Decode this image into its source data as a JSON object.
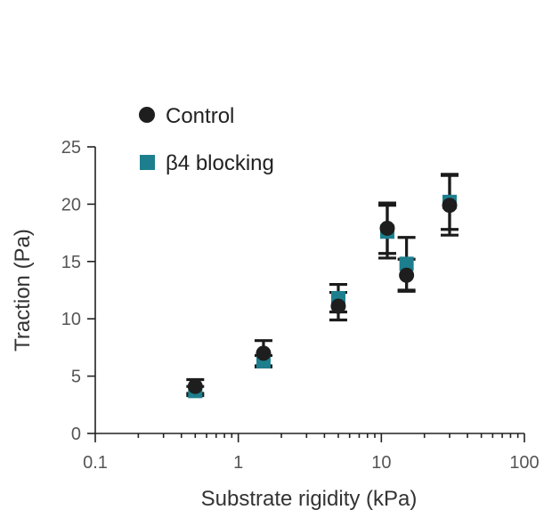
{
  "chart_data": {
    "type": "scatter",
    "xscale": "log",
    "xlabel": "Substrate rigidity (kPa)",
    "ylabel": "Traction (Pa)",
    "xlim": [
      0.1,
      100
    ],
    "ylim": [
      0,
      25
    ],
    "xticks": [
      0.1,
      1,
      10,
      100
    ],
    "xtick_labels": [
      "0.1",
      "1",
      "10",
      "100"
    ],
    "yticks": [
      0,
      5,
      10,
      15,
      20,
      25
    ],
    "ytick_labels": [
      "0",
      "5",
      "10",
      "15",
      "20",
      "25"
    ],
    "legend_position": "top-left",
    "series": [
      {
        "name": "Control",
        "marker": "circle",
        "color": "#1e1e1e",
        "points": [
          {
            "x": 0.5,
            "y": 4.1,
            "err": 0.6
          },
          {
            "x": 1.5,
            "y": 7.0,
            "err": 1.1
          },
          {
            "x": 5,
            "y": 11.1,
            "err": 1.2
          },
          {
            "x": 11,
            "y": 17.9,
            "err": 2.2
          },
          {
            "x": 15,
            "y": 13.8,
            "err": 1.4
          },
          {
            "x": 30,
            "y": 19.9,
            "err": 2.6
          }
        ]
      },
      {
        "name": "β4 blocking",
        "marker": "square",
        "color": "#1d7f8e",
        "points": [
          {
            "x": 0.5,
            "y": 3.7,
            "err": 0.4
          },
          {
            "x": 1.5,
            "y": 6.3,
            "err": 0.5
          },
          {
            "x": 5,
            "y": 11.8,
            "err": 1.2
          },
          {
            "x": 11,
            "y": 17.6,
            "err": 2.3
          },
          {
            "x": 15,
            "y": 14.8,
            "err": 2.3
          },
          {
            "x": 30,
            "y": 20.2,
            "err": 2.4
          }
        ]
      }
    ]
  }
}
